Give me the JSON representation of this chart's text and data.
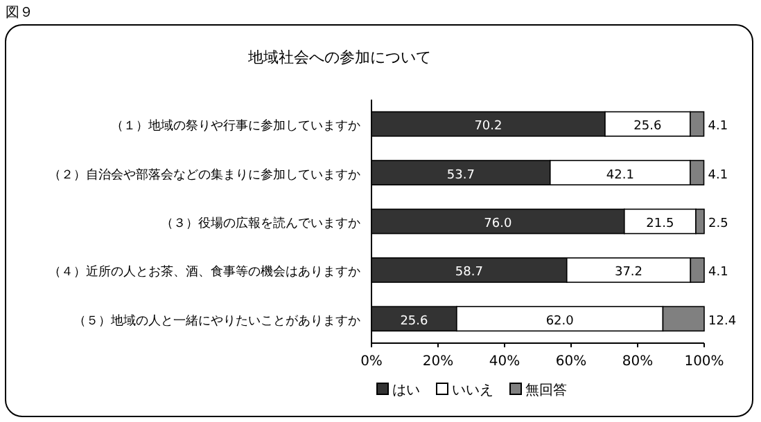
{
  "chart_data": {
    "type": "bar",
    "orientation": "horizontal",
    "stacked": true,
    "title": "地域社会への参加について",
    "annotations": [
      "図９"
    ],
    "categories": [
      "（１）地域の祭りや行事に参加していますか",
      "（２）自治会や部落会などの集まりに参加していますか",
      "（３）役場の広報を読んでいますか",
      "（４）近所の人とお茶、酒、食事等の機会はありますか",
      "（５）地域の人と一緒にやりたいことがありますか"
    ],
    "series": [
      {
        "name": "はい",
        "color": "#333333",
        "values": [
          70.2,
          53.7,
          76.0,
          58.7,
          25.6
        ],
        "value_labels": [
          "70.2",
          "53.7",
          "76.0",
          "58.7",
          "25.6"
        ]
      },
      {
        "name": "いいえ",
        "color": "#ffffff",
        "values": [
          25.6,
          42.1,
          21.5,
          37.2,
          62.0
        ],
        "value_labels": [
          "25.6",
          "42.1",
          "21.5",
          "37.2",
          "62.0"
        ]
      },
      {
        "name": "無回答",
        "color": "#808080",
        "values": [
          4.1,
          4.1,
          2.5,
          4.1,
          12.4
        ],
        "value_labels": [
          "4.1",
          "4.1",
          "2.5",
          "4.1",
          "12.4"
        ]
      }
    ],
    "xlim": [
      0,
      100
    ],
    "xticks": [
      {
        "value": 0,
        "label": "0%"
      },
      {
        "value": 20,
        "label": "20%"
      },
      {
        "value": 40,
        "label": "40%"
      },
      {
        "value": 60,
        "label": "60%"
      },
      {
        "value": 80,
        "label": "80%"
      },
      {
        "value": 100,
        "label": "100%"
      }
    ],
    "legend": "bottom"
  }
}
